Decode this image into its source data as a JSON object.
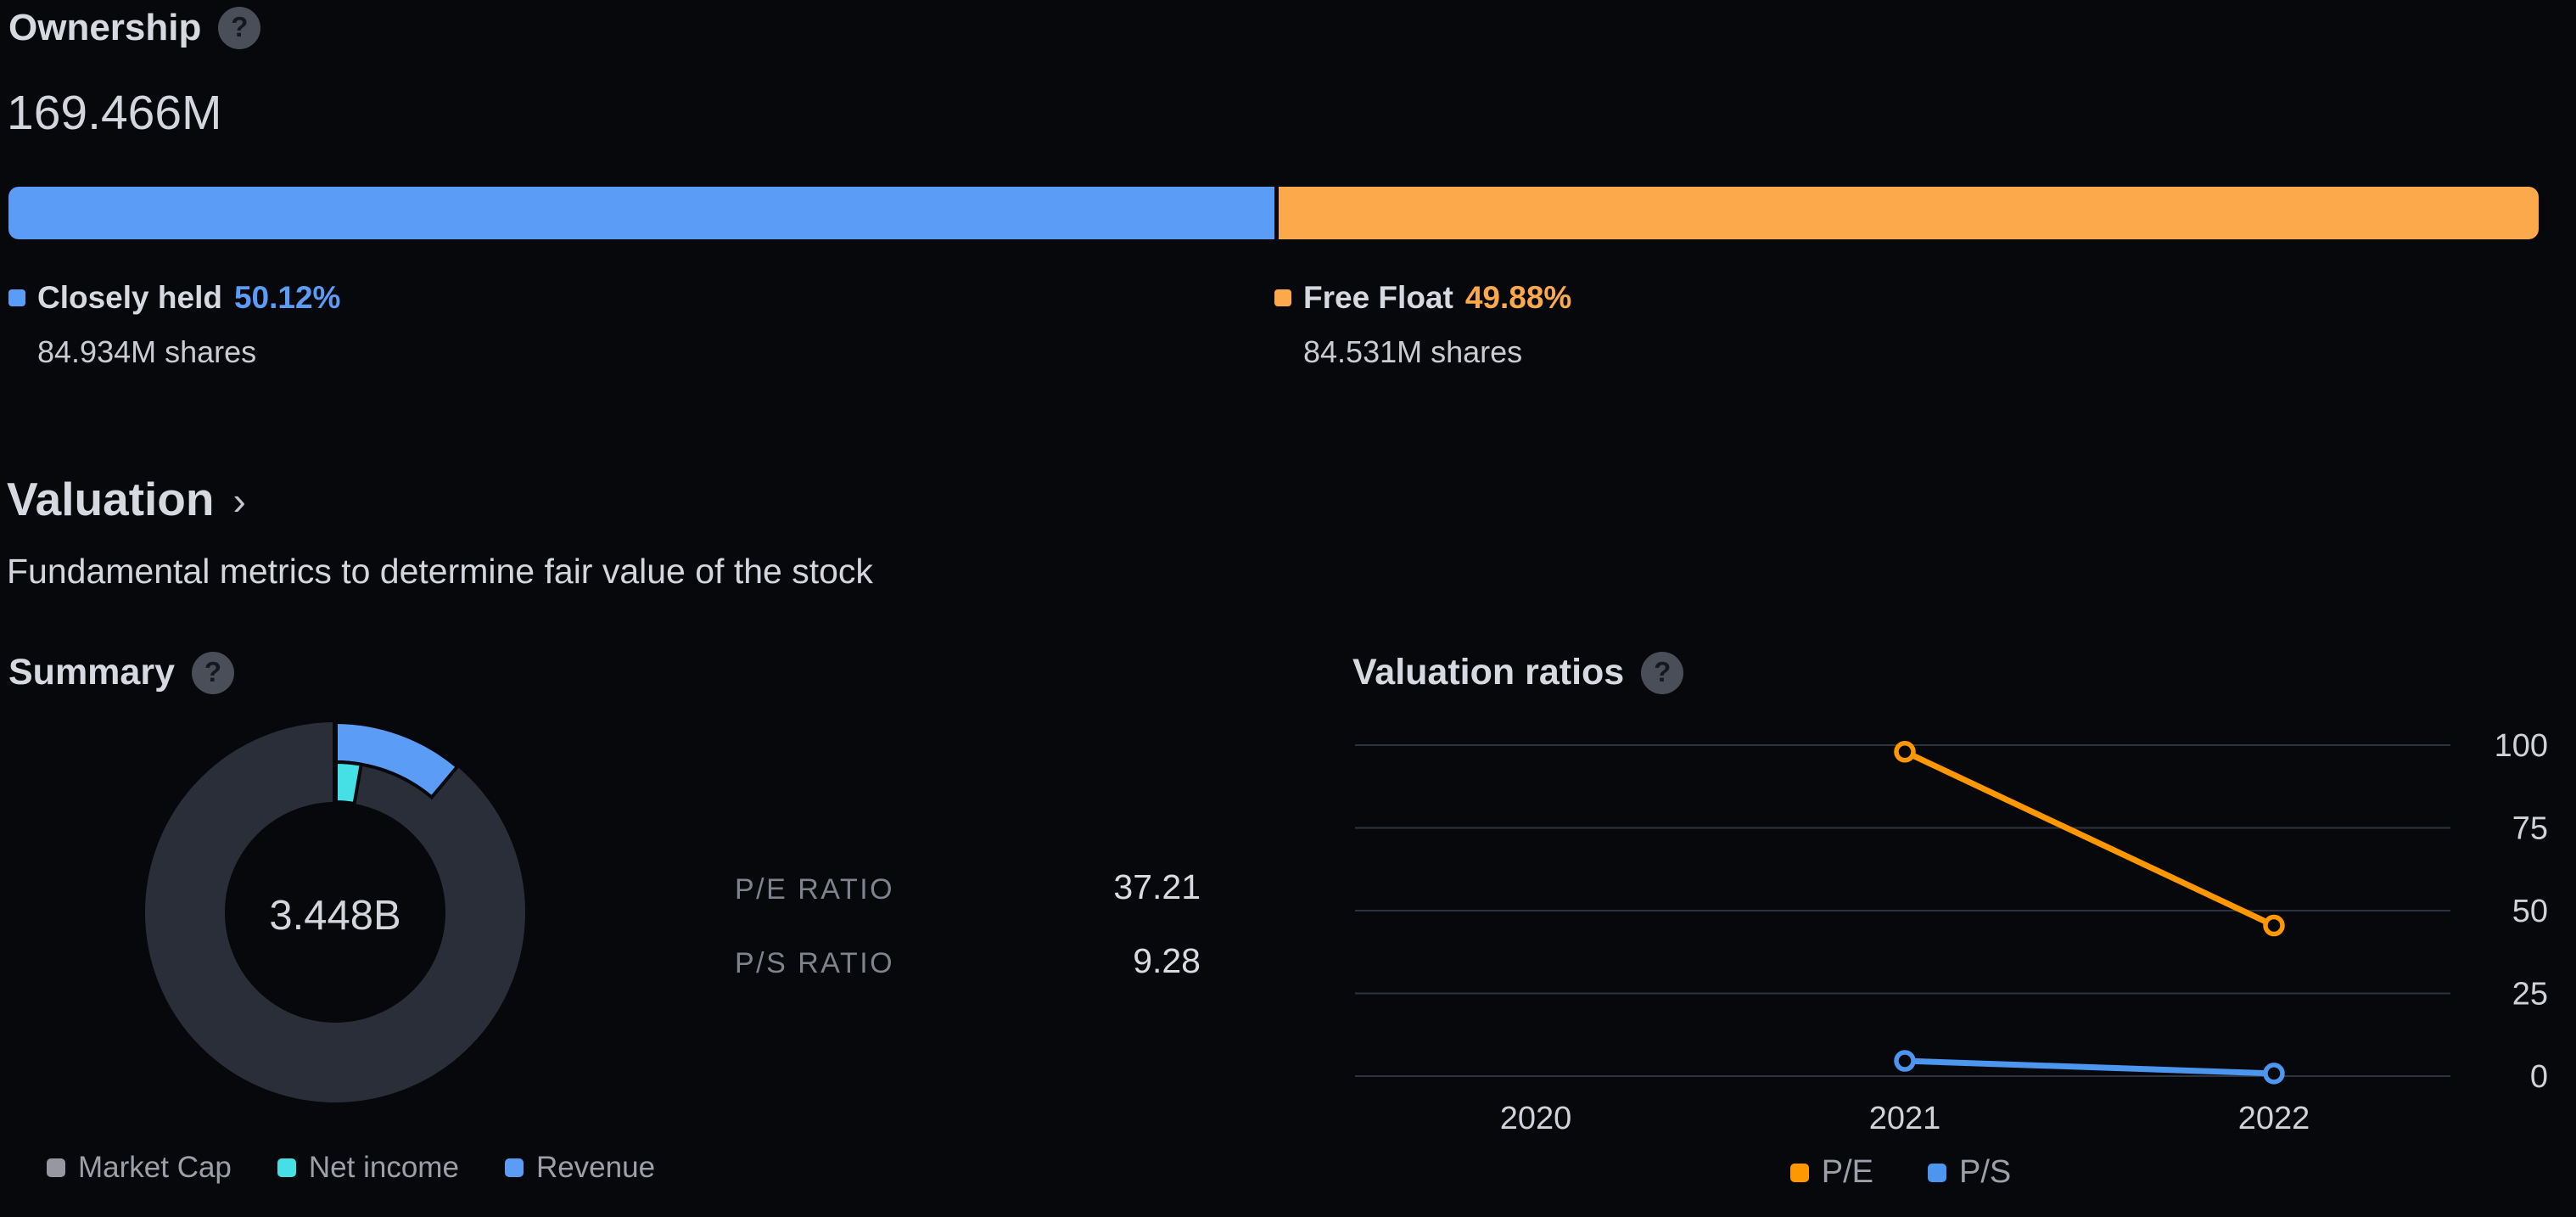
{
  "icons": {
    "help": "?"
  },
  "theme": {
    "bg": "#06080b",
    "heading": "#d6d9e0",
    "text_light": "#d3d6dd",
    "muted": "#7f838e",
    "legend_text": "#9da0a8",
    "axis_text": "#cfd2d9",
    "gridline": "#2e3340",
    "blue": "#5b9cf6",
    "orange": "#fca94c",
    "chart_orange": "#ff9800",
    "chart_blue": "#4c96f0",
    "cyan": "#45e0e6",
    "ring_gray": "#2a2e39",
    "marker_gray": "#9598a1",
    "help_bg": "#4a4e59",
    "help_glyph": "#15181f"
  },
  "ownership": {
    "title": "Ownership",
    "total_shares": "169.466M",
    "segments": [
      {
        "label": "Closely held",
        "pct": "50.12%",
        "pct_value": 50.12,
        "shares": "84.934M shares",
        "color": "#5b9cf6"
      },
      {
        "label": "Free Float",
        "pct": "49.88%",
        "pct_value": 49.88,
        "shares": "84.531M shares",
        "color": "#fca94c"
      }
    ]
  },
  "valuation": {
    "title": "Valuation",
    "chevron": "›",
    "subtitle": "Fundamental metrics to determine fair value of the stock"
  },
  "summary": {
    "title": "Summary",
    "center_value": "3.448B",
    "ratios": [
      {
        "label": "P/E RATIO",
        "value": "37.21"
      },
      {
        "label": "P/S RATIO",
        "value": "9.28"
      }
    ],
    "legend": [
      {
        "label": "Market Cap",
        "color": "#9598a1"
      },
      {
        "label": "Net income",
        "color": "#45e0e6"
      },
      {
        "label": "Revenue",
        "color": "#5b9cf6"
      }
    ]
  },
  "valuation_ratios": {
    "title": "Valuation ratios",
    "legend": [
      {
        "label": "P/E",
        "color": "#ff9800"
      },
      {
        "label": "P/S",
        "color": "#4c96f0"
      }
    ]
  },
  "chart_data": [
    {
      "id": "ownership-split-bar",
      "type": "bar",
      "title": "Ownership",
      "categories": [
        "Closely held",
        "Free Float"
      ],
      "values": [
        50.12,
        49.88
      ],
      "unit": "%",
      "share_counts": [
        "84.934M shares",
        "84.531M shares"
      ],
      "colors": [
        "#5b9cf6",
        "#fca94c"
      ],
      "total_label": "169.466M"
    },
    {
      "id": "summary-donut",
      "type": "pie",
      "title": "Summary",
      "center_label": "3.448B",
      "slices": [
        {
          "name": "Market Cap",
          "sweep_deg": 360,
          "color": "#2a2e39",
          "ring": "full"
        },
        {
          "name": "Revenue",
          "sweep_deg": 40,
          "color": "#5b9cf6",
          "ring": "outer-half"
        },
        {
          "name": "Net income",
          "sweep_deg": 10,
          "color": "#45e0e6",
          "ring": "inner-half"
        }
      ],
      "ratios": {
        "P/E RATIO": 37.21,
        "P/S RATIO": 9.28
      }
    },
    {
      "id": "valuation-ratios-line",
      "type": "line",
      "title": "Valuation ratios",
      "x": [
        "2020",
        "2021",
        "2022"
      ],
      "series": [
        {
          "name": "P/E",
          "color": "#ff9800",
          "values": [
            null,
            98,
            45.5
          ]
        },
        {
          "name": "P/S",
          "color": "#4c96f0",
          "values": [
            null,
            4.6,
            0.8
          ]
        }
      ],
      "ylim": [
        0,
        100
      ],
      "yticks": [
        0,
        25,
        50,
        75,
        100
      ],
      "grid": "horizontal",
      "legend_position": "bottom"
    }
  ]
}
